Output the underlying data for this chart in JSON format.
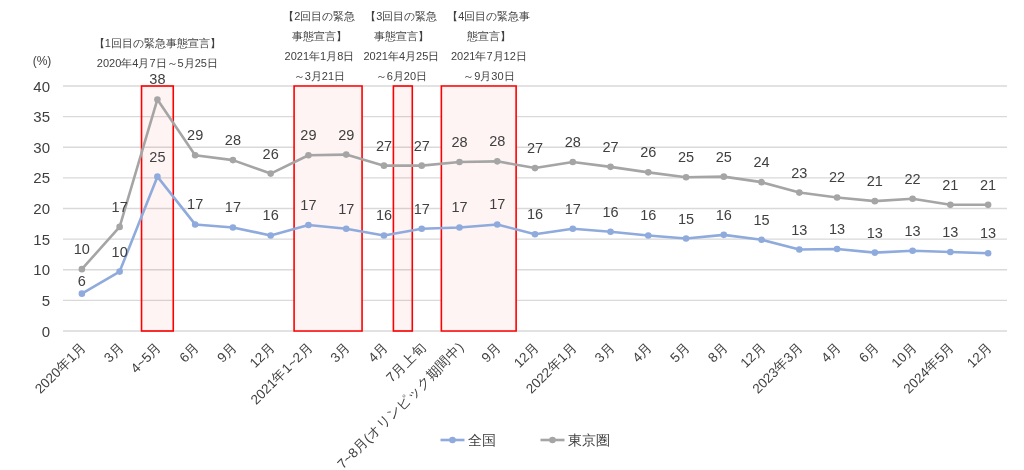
{
  "chart_data": {
    "type": "line",
    "ylabel": "(%)",
    "categories": [
      "2020年1月",
      "3月",
      "4~5月",
      "6月",
      "9月",
      "12月",
      "2021年1~2月",
      "3月",
      "4月",
      "7月上旬",
      "7~8月(オリンピック期間中)",
      "9月",
      "12月",
      "2022年1月",
      "3月",
      "4月",
      "5月",
      "8月",
      "12月",
      "2023年3月",
      "4月",
      "6月",
      "10月",
      "2024年5月",
      "12月"
    ],
    "series": [
      {
        "name": "全国",
        "color": "#8faadc",
        "values": [
          6.1,
          9.7,
          25.2,
          17.4,
          16.9,
          15.6,
          17.3,
          16.7,
          15.6,
          16.7,
          16.9,
          17.4,
          15.8,
          16.7,
          16.2,
          15.6,
          15.1,
          15.7,
          14.9,
          13.3,
          13.4,
          12.8,
          13.1,
          12.9,
          12.7
        ],
        "value_labels": [
          "6",
          "10",
          "25",
          "17",
          "17",
          "16",
          "17",
          "17",
          "16",
          "17",
          "17",
          "17",
          "16",
          "17",
          "16",
          "16",
          "15",
          "16",
          "15",
          "13",
          "13",
          "13",
          "13",
          "13",
          "13"
        ]
      },
      {
        "name": "東京圏",
        "color": "#a5a5a5",
        "values": [
          10.1,
          17.0,
          37.8,
          28.7,
          27.9,
          25.7,
          28.7,
          28.8,
          27.0,
          27.0,
          27.6,
          27.7,
          26.6,
          27.6,
          26.8,
          25.9,
          25.1,
          25.2,
          24.3,
          22.6,
          21.8,
          21.2,
          21.6,
          20.6,
          20.6
        ],
        "value_labels": [
          "10",
          "17",
          "38",
          "29",
          "28",
          "26",
          "29",
          "29",
          "27",
          "27",
          "28",
          "28",
          "27",
          "28",
          "27",
          "26",
          "25",
          "25",
          "24",
          "23",
          "22",
          "21",
          "22",
          "21",
          "21"
        ]
      }
    ],
    "ylim": [
      0,
      40
    ],
    "yticks": [
      0,
      5,
      10,
      15,
      20,
      25,
      30,
      35,
      40
    ],
    "grid": "y",
    "legend": "bottom",
    "marker": "circle",
    "line_style": "solid",
    "bands": [
      {
        "axis": "x",
        "from": "4~5月",
        "to": "4~5月",
        "label": "【1回目の緊急事態宣言】2020年4月7日～5月25日",
        "color": "#ff0000"
      },
      {
        "axis": "x",
        "from": "4月",
        "to": "7月上旬",
        "label": "【3回目の緊急事態宣言】2021年4月25日～6月20日",
        "color": "#ff0000"
      }
    ],
    "annotations": [
      "【2回目の緊急事態宣言】2021年1月8日～3月21日",
      "【4回目の緊急事態宣言】2021年7月12日～9月30日"
    ]
  }
}
